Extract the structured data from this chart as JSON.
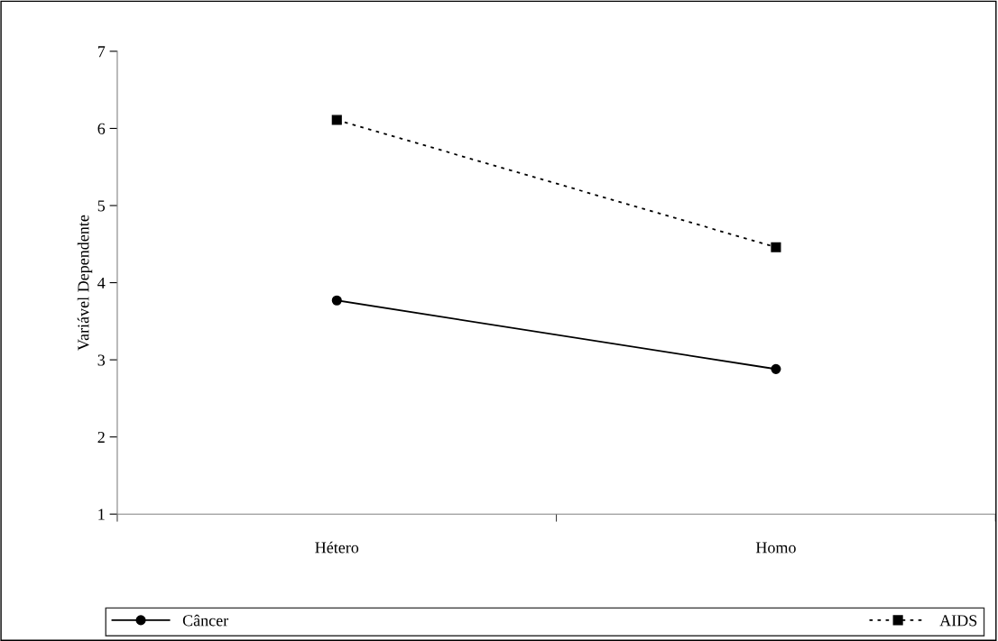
{
  "chart_data": {
    "type": "line",
    "ylabel": "Variável Dependente",
    "categories": [
      "Hétero",
      "Homo"
    ],
    "series": [
      {
        "name": "Câncer",
        "color": "#000000",
        "values": [
          3.77,
          2.88
        ],
        "marker": "circle",
        "line_style": "solid"
      },
      {
        "name": "AIDS",
        "color": "#000000",
        "values": [
          6.11,
          4.46
        ],
        "marker": "square",
        "line_style": "dotted"
      }
    ],
    "ylim": [
      1,
      7
    ],
    "yticks": [
      1,
      2,
      3,
      4,
      5,
      6,
      7
    ],
    "grid": false,
    "legend": "bottom"
  }
}
